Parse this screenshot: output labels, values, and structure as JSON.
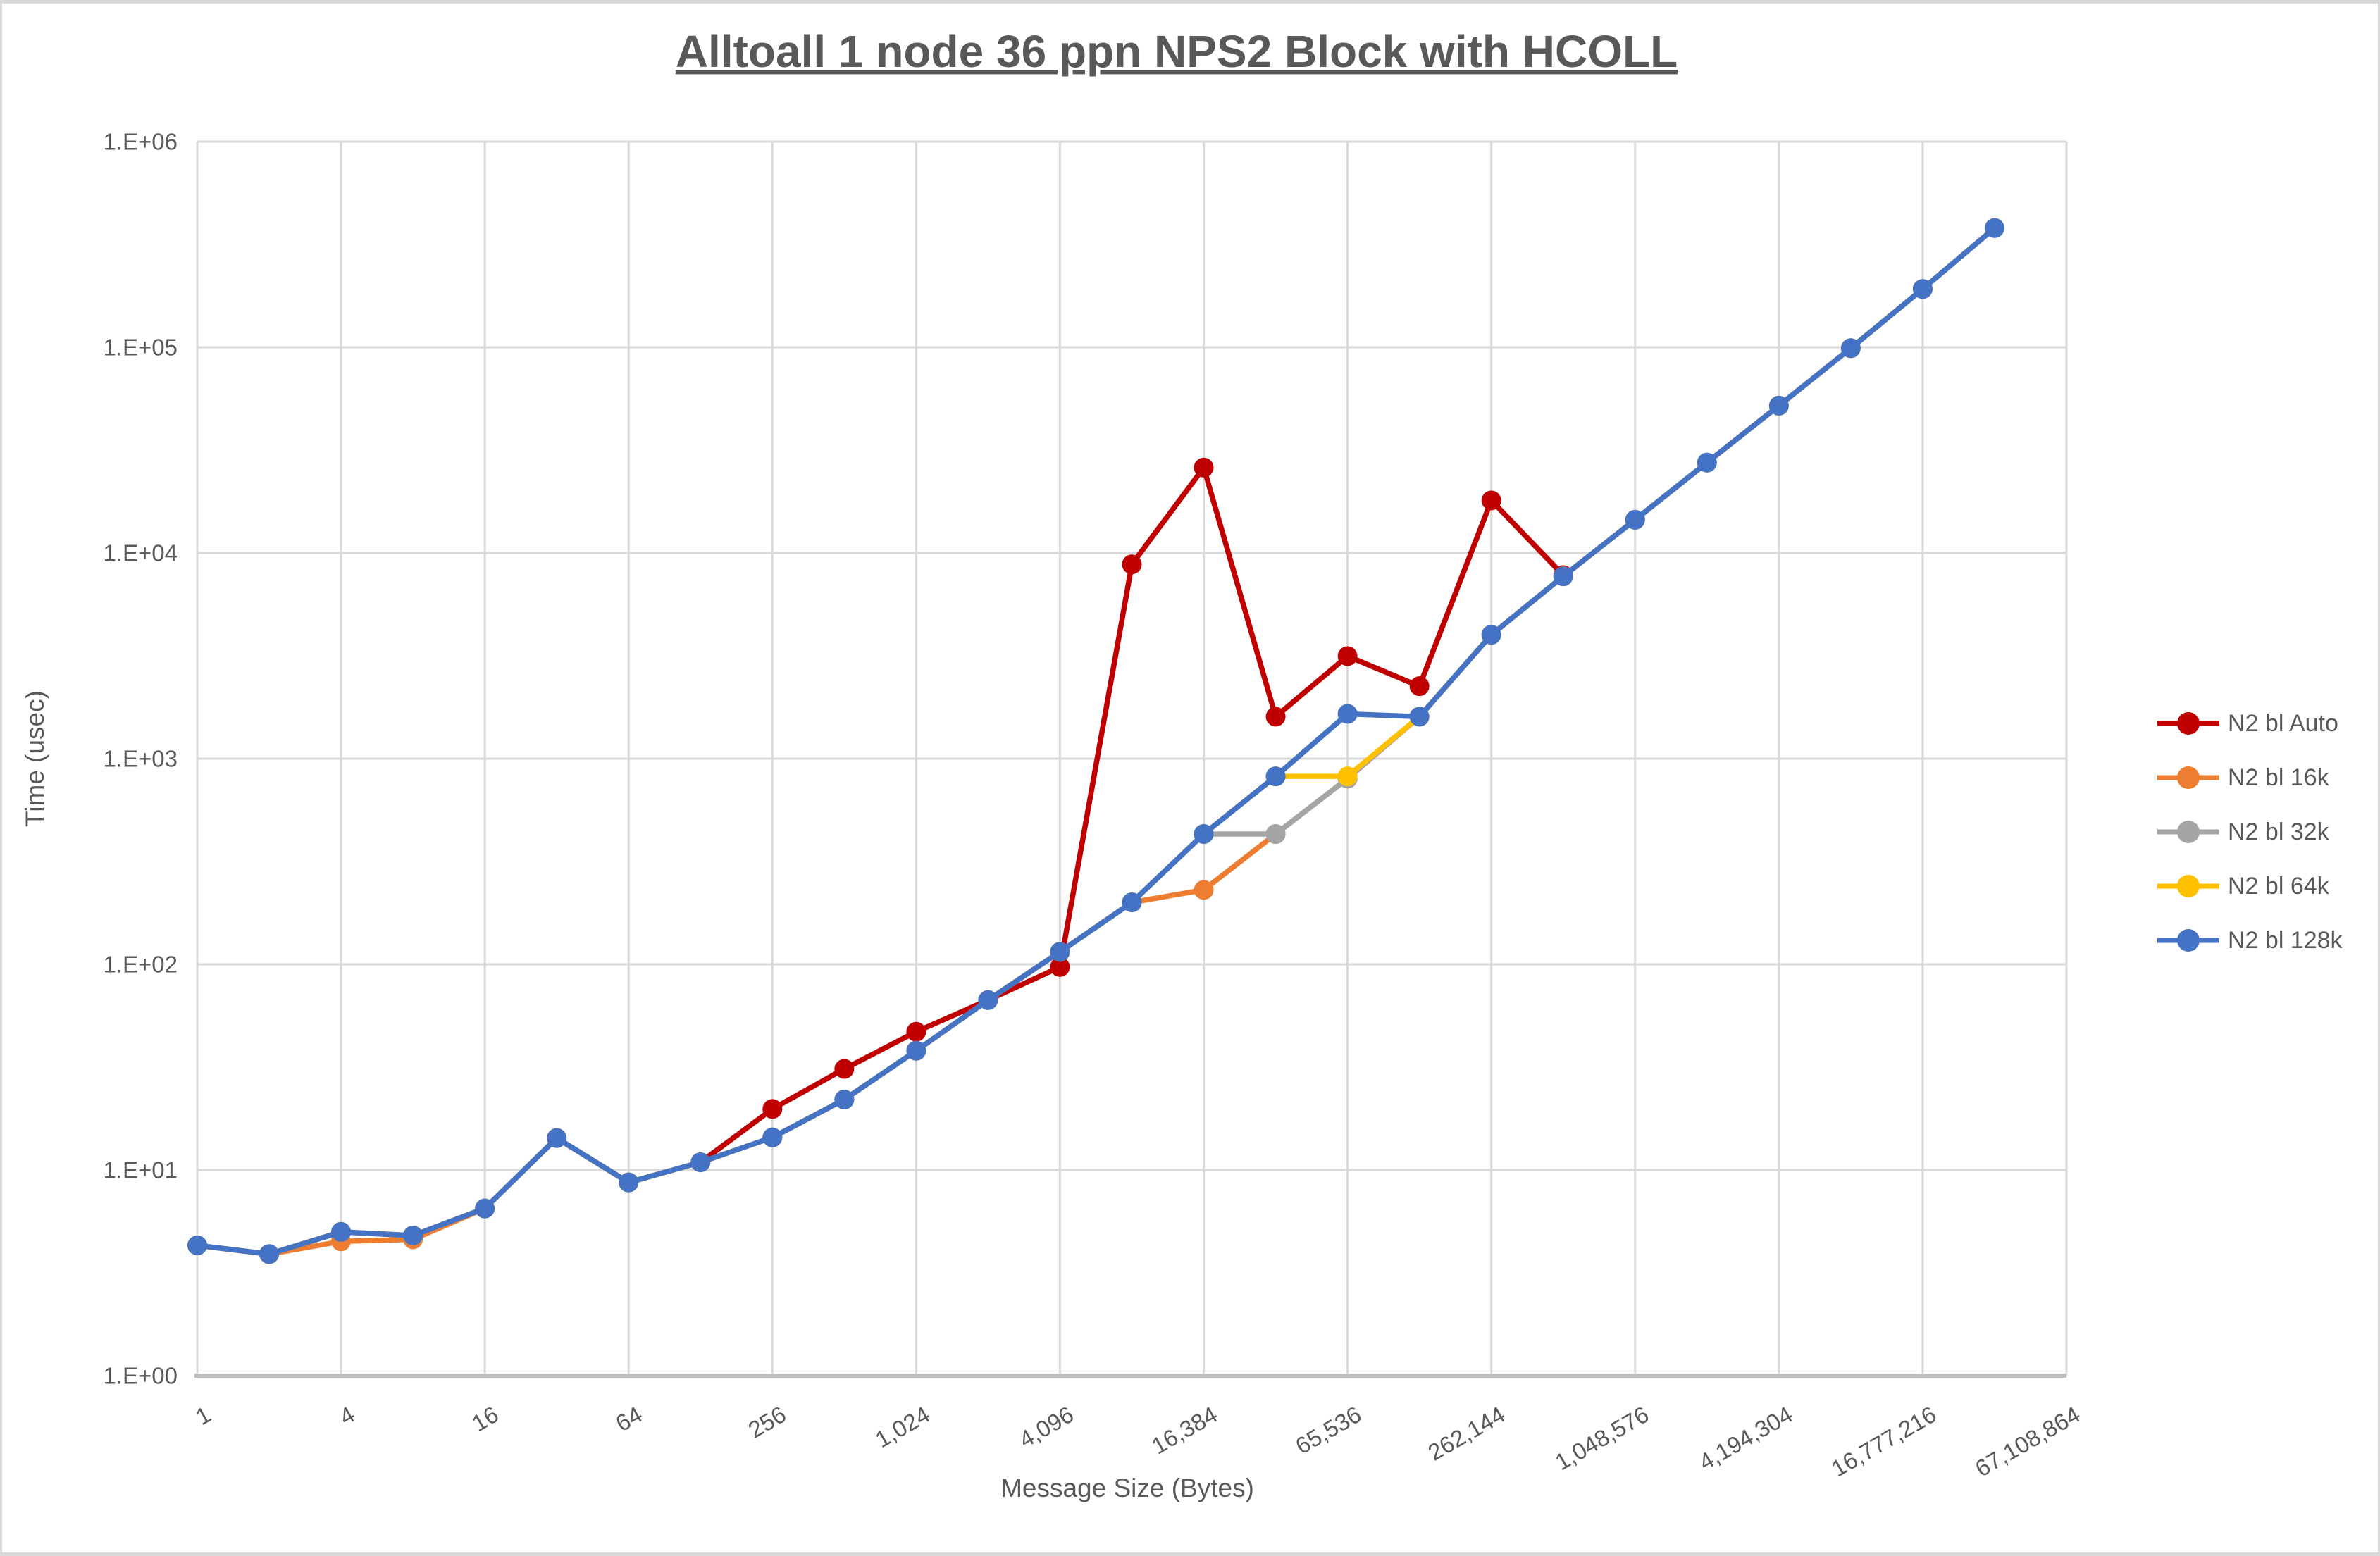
{
  "frame": {
    "edge_color": "#d9d9d9"
  },
  "title": "Alltoall 1 node 36 ppn NPS2 Block with HCOLL",
  "colors": {
    "grid": "#d9d9d9",
    "axis_line": "#bfbfbf",
    "text": "#595959",
    "title_text": "#595959",
    "background": "#ffffff"
  },
  "chart_data": {
    "type": "line",
    "title": "Alltoall 1 node 36 ppn NPS2 Block with HCOLL",
    "xlabel": "Message Size (Bytes)",
    "ylabel": "Time (usec)",
    "x_scale": "log2",
    "y_scale": "log10",
    "ylim": [
      1,
      1000000
    ],
    "y_tick_labels": [
      "1.E+00",
      "1.E+01",
      "1.E+02",
      "1.E+03",
      "1.E+04",
      "1.E+05",
      "1.E+06"
    ],
    "x_tick_values": [
      1,
      4,
      16,
      64,
      256,
      1024,
      4096,
      16384,
      65536,
      262144,
      1048576,
      4194304,
      16777216,
      67108864
    ],
    "x_tick_labels": [
      "1",
      "4",
      "16",
      "64",
      "256",
      "1,024",
      "4,096",
      "16,384",
      "65,536",
      "262,144",
      "1,048,576",
      "4,194,304",
      "16,777,216",
      "67,108,864"
    ],
    "grid": "on",
    "legend_position": "right",
    "sizes": [
      1,
      2,
      4,
      8,
      16,
      32,
      64,
      128,
      256,
      512,
      1024,
      2048,
      4096,
      8192,
      16384,
      32768,
      65536,
      131072,
      262144,
      524288,
      1048576,
      2097152,
      4194304,
      8388608,
      16777216,
      33554432
    ],
    "series": [
      {
        "name": "N2 bl Auto",
        "color": "#c00000",
        "values": [
          4.3,
          3.9,
          5.0,
          4.8,
          6.5,
          14.3,
          8.7,
          10.9,
          19.8,
          31,
          47,
          67,
          97,
          8800,
          26000,
          1600,
          3150,
          2250,
          18000,
          7800
        ]
      },
      {
        "name": "N2 bl 16k",
        "color": "#ed7d31",
        "values": [
          4.3,
          3.9,
          4.5,
          4.6,
          6.5,
          14.3,
          8.7,
          10.9,
          14.4,
          22,
          38,
          67,
          115,
          200,
          230,
          430,
          800,
          1600,
          4000,
          7700,
          14500,
          27500,
          52000,
          99000,
          192000,
          380000
        ]
      },
      {
        "name": "N2 bl 32k",
        "color": "#a5a5a5",
        "values": [
          4.3,
          3.9,
          5.0,
          4.8,
          6.5,
          14.3,
          8.7,
          10.9,
          14.4,
          22,
          38,
          67,
          115,
          200,
          430,
          430,
          800,
          1600,
          4000,
          7700,
          14500,
          27500,
          52000,
          99000,
          192000,
          380000
        ]
      },
      {
        "name": "N2 bl 64k",
        "color": "#ffc000",
        "values": [
          4.3,
          3.9,
          5.0,
          4.8,
          6.5,
          14.3,
          8.7,
          10.9,
          14.4,
          22,
          38,
          67,
          115,
          200,
          430,
          820,
          820,
          1600,
          4000,
          7700,
          14500,
          27500,
          52000,
          99000,
          192000,
          380000
        ]
      },
      {
        "name": "N2 bl 128k",
        "color": "#4472c4",
        "values": [
          4.3,
          3.9,
          5.0,
          4.8,
          6.5,
          14.3,
          8.7,
          10.9,
          14.4,
          22,
          38,
          67,
          115,
          200,
          430,
          820,
          1650,
          1600,
          4000,
          7700,
          14500,
          27500,
          52000,
          99000,
          192000,
          380000
        ]
      }
    ],
    "legend": [
      "N2 bl Auto",
      "N2 bl 16k",
      "N2 bl 32k",
      "N2 bl 64k",
      "N2 bl 128k"
    ]
  }
}
